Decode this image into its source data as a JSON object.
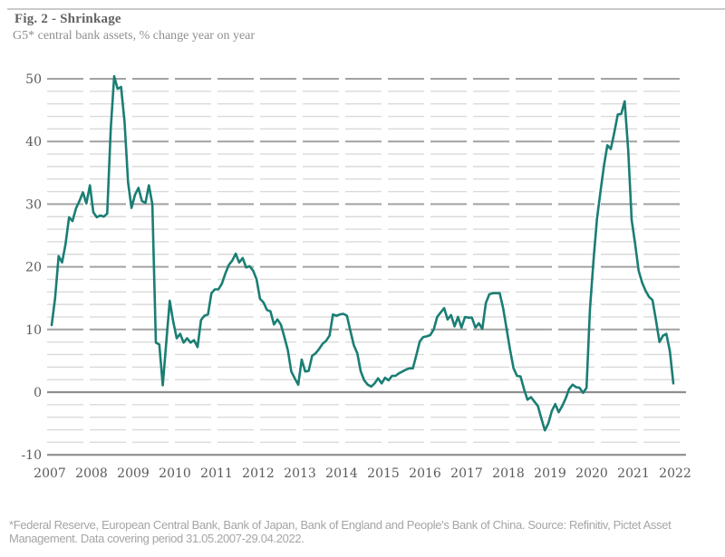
{
  "header": {
    "title": "Fig. 2 - Shrinkage",
    "subtitle": "G5* central bank assets, % change year on year"
  },
  "footnote": {
    "text": "*Federal Reserve, European Central Bank, Bank of Japan, Bank of England and People's Bank of China. Source: Refinitiv, Pictet Asset Management. Data covering period 31.05.2007-29.04.2022."
  },
  "chart_data": {
    "type": "line",
    "title": "Fig. 2 - Shrinkage",
    "subtitle": "G5* central bank assets, % change year on year",
    "series_name": "G5 central bank assets, % change year on year",
    "line_color": "#1a7e74",
    "grid": "horizontal, dashed majors every 10, light minors every 2, solid line at 0 and -10",
    "legend": "none",
    "ylim": [
      -10,
      50
    ],
    "y_ticks": [
      50,
      40,
      30,
      20,
      10,
      0,
      -10
    ],
    "minor_grid_step": 2,
    "x_tick_labels": [
      "2007",
      "2008",
      "2009",
      "2010",
      "2011",
      "2012",
      "2013",
      "2014",
      "2015",
      "2016",
      "2017",
      "2018",
      "2019",
      "2020",
      "2021",
      "2022"
    ],
    "data_period": "31.05.2007-29.04.2022",
    "frequency": "monthly",
    "values": [
      10.7,
      15.0,
      21.7,
      20.7,
      23.6,
      27.9,
      27.3,
      29.3,
      30.5,
      31.9,
      30.1,
      33.0,
      28.7,
      27.9,
      28.2,
      28.0,
      28.5,
      42.0,
      50.4,
      48.4,
      48.7,
      43.0,
      33.5,
      29.4,
      31.5,
      32.6,
      30.5,
      30.2,
      33.0,
      30.0,
      7.9,
      7.6,
      1.1,
      8.0,
      14.6,
      11.3,
      8.6,
      9.3,
      7.9,
      8.6,
      7.9,
      8.3,
      7.2,
      11.5,
      12.2,
      12.4,
      15.8,
      16.4,
      16.4,
      17.3,
      18.9,
      20.3,
      21.0,
      22.1,
      20.7,
      21.4,
      19.9,
      20.1,
      19.4,
      18.0,
      14.9,
      14.3,
      13.1,
      12.9,
      10.8,
      11.6,
      10.8,
      8.8,
      6.7,
      3.3,
      2.2,
      1.2,
      5.2,
      3.3,
      3.4,
      5.8,
      6.2,
      6.9,
      7.7,
      8.2,
      9.0,
      12.4,
      12.2,
      12.4,
      12.5,
      12.2,
      9.8,
      7.5,
      6.2,
      3.3,
      1.9,
      1.2,
      0.9,
      1.4,
      2.2,
      1.4,
      2.3,
      1.9,
      2.6,
      2.6,
      3.0,
      3.3,
      3.6,
      3.8,
      3.8,
      5.9,
      8.1,
      8.8,
      8.9,
      9.1,
      10.0,
      12.0,
      12.7,
      13.4,
      11.6,
      12.3,
      10.5,
      12.0,
      10.3,
      12.0,
      11.9,
      11.9,
      10.3,
      11.0,
      10.1,
      14.2,
      15.6,
      15.8,
      15.8,
      15.8,
      13.4,
      10.1,
      6.7,
      3.8,
      2.6,
      2.5,
      0.5,
      -1.2,
      -0.8,
      -1.5,
      -2.2,
      -4.2,
      -6.1,
      -5.0,
      -3.0,
      -1.9,
      -3.2,
      -2.2,
      -1.0,
      0.5,
      1.2,
      0.8,
      0.7,
      -0.1,
      0.7,
      13.3,
      21.0,
      27.6,
      31.9,
      36.1,
      39.4,
      38.8,
      41.4,
      44.3,
      44.4,
      46.4,
      38.6,
      27.5,
      23.7,
      19.4,
      17.5,
      16.2,
      15.2,
      14.7,
      11.5,
      8.0,
      9.0,
      9.3,
      6.5,
      1.4
    ]
  }
}
